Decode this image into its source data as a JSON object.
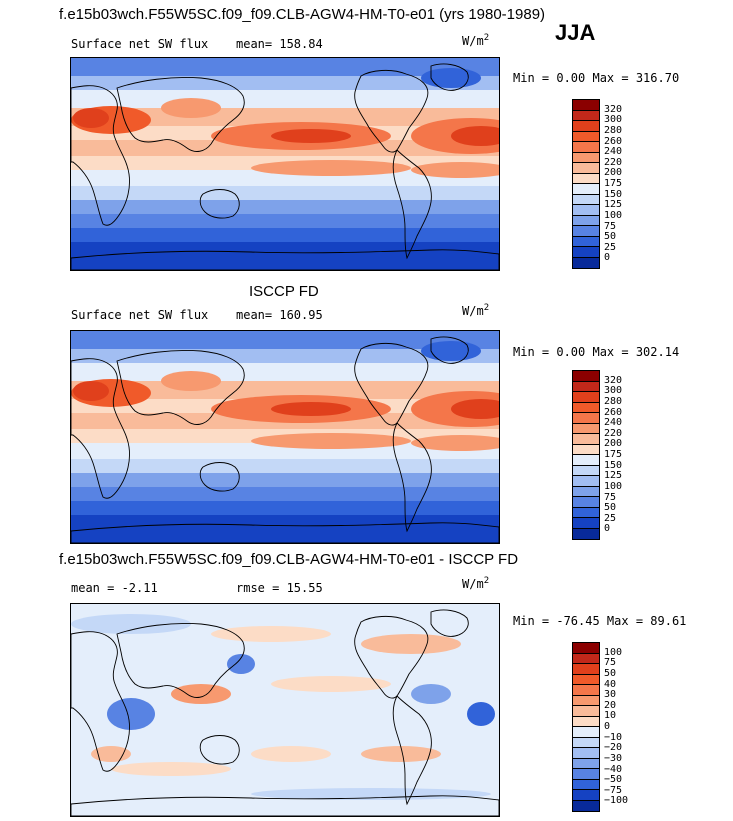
{
  "header": {
    "title": "f.e15b03wch.F55W5SC.f09_f09.CLB-AGW4-HM-T0-e01 (yrs 1980-1989)",
    "season": "JJA"
  },
  "chart_data": [
    {
      "type": "heatmap",
      "title": "f.e15b03wch.F55W5SC.f09_f09.CLB-AGW4-HM-T0-e01 (yrs 1980-1989)",
      "left_label": "Surface net SW flux",
      "stat_label": "mean= 158.84",
      "units_base": "W/m",
      "units_exp": "2",
      "minmax": "Min =   0.00 Max = 316.70",
      "colorbar_ticks": [
        "320",
        "300",
        "280",
        "260",
        "240",
        "220",
        "200",
        "175",
        "150",
        "125",
        "100",
        "75",
        "50",
        "25",
        "0"
      ],
      "colorbar_colors": [
        "#8b0000",
        "#c1281a",
        "#e0401c",
        "#f05a2a",
        "#f4764a",
        "#f7996f",
        "#f9bb9a",
        "#fcdcc6",
        "#e4eefb",
        "#c4d8f7",
        "#a2bef2",
        "#7ea2ea",
        "#5883e3",
        "#3163d9",
        "#1542c2",
        "#082a9a"
      ]
    },
    {
      "type": "heatmap",
      "title": "ISCCP FD",
      "left_label": "Surface net SW flux",
      "stat_label": "mean= 160.95",
      "units_base": "W/m",
      "units_exp": "2",
      "minmax": "Min =   0.00 Max = 302.14",
      "colorbar_ticks": [
        "320",
        "300",
        "280",
        "260",
        "240",
        "220",
        "200",
        "175",
        "150",
        "125",
        "100",
        "75",
        "50",
        "25",
        "0"
      ],
      "colorbar_colors": [
        "#8b0000",
        "#c1281a",
        "#e0401c",
        "#f05a2a",
        "#f4764a",
        "#f7996f",
        "#f9bb9a",
        "#fcdcc6",
        "#e4eefb",
        "#c4d8f7",
        "#a2bef2",
        "#7ea2ea",
        "#5883e3",
        "#3163d9",
        "#1542c2",
        "#082a9a"
      ]
    },
    {
      "type": "heatmap",
      "title": "f.e15b03wch.F55W5SC.f09_f09.CLB-AGW4-HM-T0-e01 - ISCCP FD",
      "left_label": "mean =  -2.11",
      "stat_label": "rmse =  15.55",
      "units_base": "W/m",
      "units_exp": "2",
      "minmax": "Min = -76.45 Max =  89.61",
      "colorbar_ticks": [
        "100",
        "75",
        "50",
        "40",
        "30",
        "20",
        "10",
        "0",
        "−10",
        "−20",
        "−30",
        "−40",
        "−50",
        "−75",
        "−100"
      ],
      "colorbar_colors": [
        "#8b0000",
        "#c1281a",
        "#e0401c",
        "#f05a2a",
        "#f4764a",
        "#f7996f",
        "#f9bb9a",
        "#fcdcc6",
        "#e4eefb",
        "#c4d8f7",
        "#a2bef2",
        "#7ea2ea",
        "#5883e3",
        "#3163d9",
        "#1542c2",
        "#082a9a"
      ]
    }
  ]
}
